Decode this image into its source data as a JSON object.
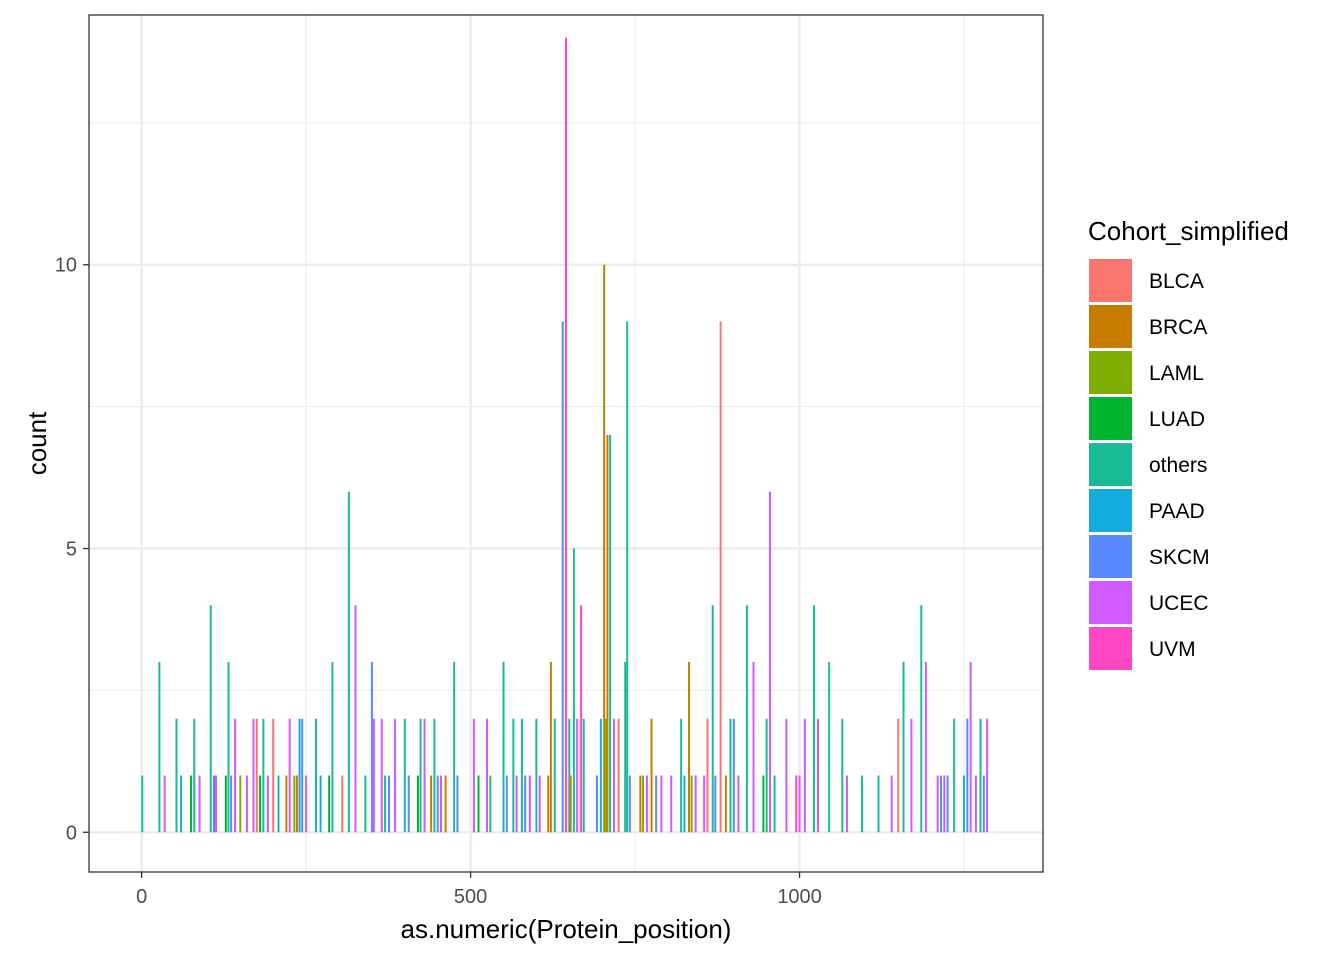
{
  "chart_data": {
    "type": "bar",
    "title": "",
    "xlabel": "as.numeric(Protein_position)",
    "ylabel": "count",
    "xlim": [
      -80,
      1370
    ],
    "ylim": [
      -0.7,
      14.4
    ],
    "x_ticks": [
      0,
      500,
      1000
    ],
    "x_tick_labels": [
      "0",
      "500",
      "1000"
    ],
    "x_minor": [
      250,
      750,
      1250
    ],
    "y_ticks": [
      0,
      5,
      10
    ],
    "y_tick_labels": [
      "0",
      "5",
      "10"
    ],
    "y_minor": [
      2.5,
      7.5,
      12.5
    ],
    "grid": true,
    "legend": {
      "title": "Cohort_simplified",
      "position": "right"
    },
    "series": [
      {
        "name": "BLCA",
        "color": "#F8766D"
      },
      {
        "name": "BRCA",
        "color": "#C77C00"
      },
      {
        "name": "LAML",
        "color": "#7CAE00"
      },
      {
        "name": "LUAD",
        "color": "#00B52F"
      },
      {
        "name": "others",
        "color": "#19BB97"
      },
      {
        "name": "PAAD",
        "color": "#12ACDF"
      },
      {
        "name": "SKCM",
        "color": "#5989FF"
      },
      {
        "name": "UCEC",
        "color": "#D059FF"
      },
      {
        "name": "UVM",
        "color": "#FF47C3"
      }
    ],
    "bars": [
      {
        "x": 1,
        "y": 1,
        "series": "others"
      },
      {
        "x": 27,
        "y": 3,
        "series": "others"
      },
      {
        "x": 35,
        "y": 1,
        "series": "UCEC"
      },
      {
        "x": 53,
        "y": 2,
        "series": "others"
      },
      {
        "x": 60,
        "y": 1,
        "series": "PAAD"
      },
      {
        "x": 75,
        "y": 1,
        "series": "LUAD"
      },
      {
        "x": 80,
        "y": 2,
        "series": "others"
      },
      {
        "x": 88,
        "y": 1,
        "series": "UCEC"
      },
      {
        "x": 105,
        "y": 4,
        "series": "others"
      },
      {
        "x": 110,
        "y": 1,
        "series": "SKCM"
      },
      {
        "x": 113,
        "y": 1,
        "series": "UCEC"
      },
      {
        "x": 128,
        "y": 1,
        "series": "LUAD"
      },
      {
        "x": 132,
        "y": 3,
        "series": "others"
      },
      {
        "x": 136,
        "y": 1,
        "series": "SKCM"
      },
      {
        "x": 142,
        "y": 2,
        "series": "UCEC"
      },
      {
        "x": 150,
        "y": 1,
        "series": "LAML"
      },
      {
        "x": 160,
        "y": 1,
        "series": "UCEC"
      },
      {
        "x": 170,
        "y": 2,
        "series": "UCEC"
      },
      {
        "x": 175,
        "y": 2,
        "series": "BLCA"
      },
      {
        "x": 180,
        "y": 1,
        "series": "LUAD"
      },
      {
        "x": 185,
        "y": 2,
        "series": "others"
      },
      {
        "x": 192,
        "y": 1,
        "series": "UCEC"
      },
      {
        "x": 200,
        "y": 2,
        "series": "BLCA"
      },
      {
        "x": 208,
        "y": 1,
        "series": "others"
      },
      {
        "x": 220,
        "y": 1,
        "series": "BRCA"
      },
      {
        "x": 225,
        "y": 2,
        "series": "UCEC"
      },
      {
        "x": 232,
        "y": 1,
        "series": "LAML"
      },
      {
        "x": 236,
        "y": 1,
        "series": "BRCA"
      },
      {
        "x": 240,
        "y": 2,
        "series": "PAAD"
      },
      {
        "x": 244,
        "y": 2,
        "series": "SKCM"
      },
      {
        "x": 250,
        "y": 1,
        "series": "UCEC"
      },
      {
        "x": 265,
        "y": 2,
        "series": "others"
      },
      {
        "x": 272,
        "y": 1,
        "series": "PAAD"
      },
      {
        "x": 285,
        "y": 1,
        "series": "LUAD"
      },
      {
        "x": 290,
        "y": 3,
        "series": "others"
      },
      {
        "x": 305,
        "y": 1,
        "series": "BLCA"
      },
      {
        "x": 315,
        "y": 6,
        "series": "others"
      },
      {
        "x": 325,
        "y": 4,
        "series": "UCEC"
      },
      {
        "x": 340,
        "y": 1,
        "series": "others"
      },
      {
        "x": 350,
        "y": 3,
        "series": "SKCM"
      },
      {
        "x": 353,
        "y": 2,
        "series": "UCEC"
      },
      {
        "x": 365,
        "y": 2,
        "series": "UCEC"
      },
      {
        "x": 370,
        "y": 1,
        "series": "others"
      },
      {
        "x": 376,
        "y": 1,
        "series": "SKCM"
      },
      {
        "x": 385,
        "y": 2,
        "series": "UCEC"
      },
      {
        "x": 400,
        "y": 2,
        "series": "others"
      },
      {
        "x": 406,
        "y": 1,
        "series": "SKCM"
      },
      {
        "x": 420,
        "y": 1,
        "series": "LUAD"
      },
      {
        "x": 424,
        "y": 2,
        "series": "others"
      },
      {
        "x": 430,
        "y": 2,
        "series": "UCEC"
      },
      {
        "x": 440,
        "y": 1,
        "series": "BRCA"
      },
      {
        "x": 445,
        "y": 2,
        "series": "others"
      },
      {
        "x": 450,
        "y": 1,
        "series": "SKCM"
      },
      {
        "x": 455,
        "y": 1,
        "series": "UCEC"
      },
      {
        "x": 462,
        "y": 1,
        "series": "BRCA"
      },
      {
        "x": 475,
        "y": 3,
        "series": "others"
      },
      {
        "x": 480,
        "y": 1,
        "series": "SKCM"
      },
      {
        "x": 505,
        "y": 2,
        "series": "UCEC"
      },
      {
        "x": 512,
        "y": 1,
        "series": "LUAD"
      },
      {
        "x": 525,
        "y": 2,
        "series": "UCEC"
      },
      {
        "x": 530,
        "y": 1,
        "series": "others"
      },
      {
        "x": 550,
        "y": 3,
        "series": "others"
      },
      {
        "x": 555,
        "y": 1,
        "series": "SKCM"
      },
      {
        "x": 565,
        "y": 2,
        "series": "others"
      },
      {
        "x": 570,
        "y": 1,
        "series": "UCEC"
      },
      {
        "x": 578,
        "y": 2,
        "series": "others"
      },
      {
        "x": 583,
        "y": 1,
        "series": "SKCM"
      },
      {
        "x": 590,
        "y": 1,
        "series": "UCEC"
      },
      {
        "x": 600,
        "y": 2,
        "series": "others"
      },
      {
        "x": 605,
        "y": 1,
        "series": "UCEC"
      },
      {
        "x": 618,
        "y": 1,
        "series": "BRCA"
      },
      {
        "x": 622,
        "y": 3,
        "series": "BRCA"
      },
      {
        "x": 628,
        "y": 2,
        "series": "others"
      },
      {
        "x": 640,
        "y": 9,
        "series": "SKCM"
      },
      {
        "x": 645,
        "y": 14,
        "series": "UVM"
      },
      {
        "x": 650,
        "y": 2,
        "series": "others"
      },
      {
        "x": 652,
        "y": 1,
        "series": "BRCA"
      },
      {
        "x": 657,
        "y": 5,
        "series": "others"
      },
      {
        "x": 662,
        "y": 2,
        "series": "UCEC"
      },
      {
        "x": 668,
        "y": 4,
        "series": "UVM"
      },
      {
        "x": 672,
        "y": 2,
        "series": "others"
      },
      {
        "x": 692,
        "y": 1,
        "series": "SKCM"
      },
      {
        "x": 698,
        "y": 2,
        "series": "PAAD"
      },
      {
        "x": 703,
        "y": 10,
        "series": "BRCA"
      },
      {
        "x": 705,
        "y": 2,
        "series": "LAML"
      },
      {
        "x": 708,
        "y": 7,
        "series": "BRCA"
      },
      {
        "x": 712,
        "y": 7,
        "series": "others"
      },
      {
        "x": 718,
        "y": 2,
        "series": "UCEC"
      },
      {
        "x": 725,
        "y": 2,
        "series": "BLCA"
      },
      {
        "x": 735,
        "y": 3,
        "series": "others"
      },
      {
        "x": 738,
        "y": 9,
        "series": "others"
      },
      {
        "x": 742,
        "y": 1,
        "series": "SKCM"
      },
      {
        "x": 758,
        "y": 1,
        "series": "BRCA"
      },
      {
        "x": 762,
        "y": 1,
        "series": "LAML"
      },
      {
        "x": 768,
        "y": 1,
        "series": "UCEC"
      },
      {
        "x": 775,
        "y": 2,
        "series": "BRCA"
      },
      {
        "x": 782,
        "y": 1,
        "series": "SKCM"
      },
      {
        "x": 790,
        "y": 1,
        "series": "UCEC"
      },
      {
        "x": 805,
        "y": 1,
        "series": "UCEC"
      },
      {
        "x": 820,
        "y": 2,
        "series": "others"
      },
      {
        "x": 825,
        "y": 1,
        "series": "PAAD"
      },
      {
        "x": 832,
        "y": 3,
        "series": "BRCA"
      },
      {
        "x": 836,
        "y": 1,
        "series": "LAML"
      },
      {
        "x": 842,
        "y": 1,
        "series": "UCEC"
      },
      {
        "x": 855,
        "y": 1,
        "series": "UCEC"
      },
      {
        "x": 860,
        "y": 2,
        "series": "BLCA"
      },
      {
        "x": 868,
        "y": 4,
        "series": "others"
      },
      {
        "x": 872,
        "y": 1,
        "series": "SKCM"
      },
      {
        "x": 880,
        "y": 9,
        "series": "BLCA"
      },
      {
        "x": 888,
        "y": 1,
        "series": "BRCA"
      },
      {
        "x": 895,
        "y": 2,
        "series": "others"
      },
      {
        "x": 900,
        "y": 2,
        "series": "SKCM"
      },
      {
        "x": 907,
        "y": 1,
        "series": "UCEC"
      },
      {
        "x": 920,
        "y": 4,
        "series": "others"
      },
      {
        "x": 930,
        "y": 3,
        "series": "UCEC"
      },
      {
        "x": 945,
        "y": 1,
        "series": "LUAD"
      },
      {
        "x": 950,
        "y": 2,
        "series": "others"
      },
      {
        "x": 955,
        "y": 6,
        "series": "UCEC"
      },
      {
        "x": 962,
        "y": 1,
        "series": "others"
      },
      {
        "x": 980,
        "y": 2,
        "series": "UCEC"
      },
      {
        "x": 995,
        "y": 1,
        "series": "UVM"
      },
      {
        "x": 1000,
        "y": 1,
        "series": "UCEC"
      },
      {
        "x": 1008,
        "y": 2,
        "series": "UCEC"
      },
      {
        "x": 1022,
        "y": 4,
        "series": "others"
      },
      {
        "x": 1028,
        "y": 2,
        "series": "UCEC"
      },
      {
        "x": 1045,
        "y": 3,
        "series": "others"
      },
      {
        "x": 1065,
        "y": 2,
        "series": "others"
      },
      {
        "x": 1072,
        "y": 1,
        "series": "UCEC"
      },
      {
        "x": 1095,
        "y": 1,
        "series": "others"
      },
      {
        "x": 1120,
        "y": 1,
        "series": "others"
      },
      {
        "x": 1140,
        "y": 1,
        "series": "UCEC"
      },
      {
        "x": 1150,
        "y": 2,
        "series": "BLCA"
      },
      {
        "x": 1158,
        "y": 3,
        "series": "others"
      },
      {
        "x": 1170,
        "y": 2,
        "series": "UCEC"
      },
      {
        "x": 1185,
        "y": 4,
        "series": "others"
      },
      {
        "x": 1192,
        "y": 3,
        "series": "UCEC"
      },
      {
        "x": 1210,
        "y": 1,
        "series": "UCEC"
      },
      {
        "x": 1215,
        "y": 1,
        "series": "SKCM"
      },
      {
        "x": 1220,
        "y": 1,
        "series": "UCEC"
      },
      {
        "x": 1225,
        "y": 1,
        "series": "SKCM"
      },
      {
        "x": 1235,
        "y": 2,
        "series": "others"
      },
      {
        "x": 1250,
        "y": 1,
        "series": "others"
      },
      {
        "x": 1255,
        "y": 2,
        "series": "SKCM"
      },
      {
        "x": 1260,
        "y": 3,
        "series": "UCEC"
      },
      {
        "x": 1268,
        "y": 1,
        "series": "UCEC"
      },
      {
        "x": 1275,
        "y": 2,
        "series": "others"
      },
      {
        "x": 1280,
        "y": 1,
        "series": "SKCM"
      },
      {
        "x": 1285,
        "y": 2,
        "series": "UCEC"
      }
    ]
  }
}
